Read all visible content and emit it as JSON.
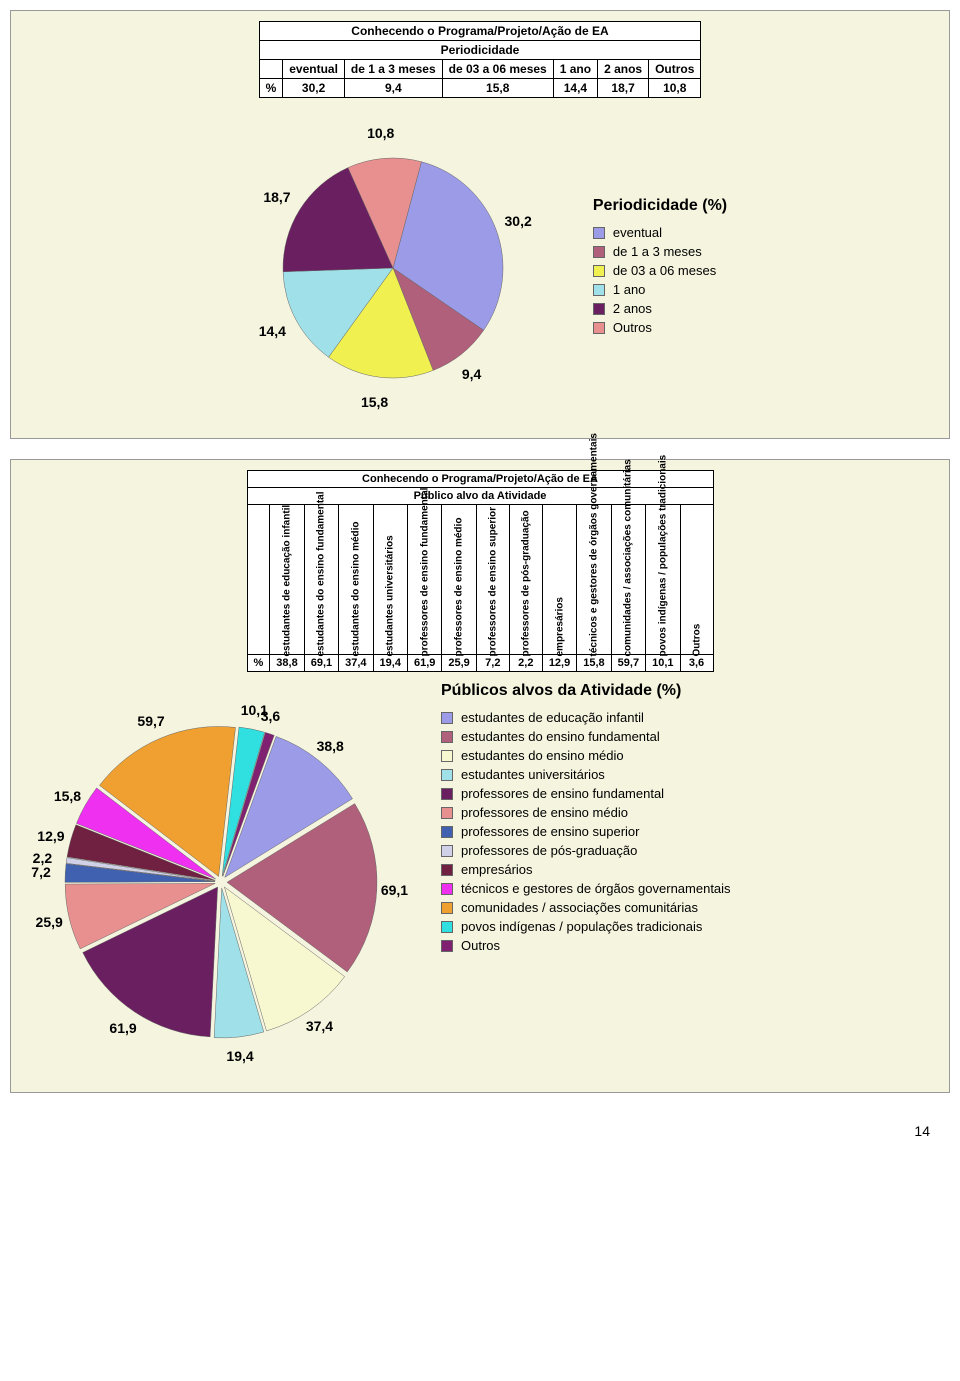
{
  "page_number": "14",
  "panel1": {
    "table": {
      "title": "Conhecendo o Programa/Projeto/Ação de EA",
      "subtitle": "Periodicidade",
      "headers": [
        "eventual",
        "de 1 a 3 meses",
        "de 03 a 06 meses",
        "1 ano",
        "2 anos",
        "Outros"
      ],
      "row_label": "%",
      "values": [
        "30,2",
        "9,4",
        "15,8",
        "14,4",
        "18,7",
        "10,8"
      ]
    },
    "chart": {
      "title": "Periodicidade (%)",
      "type": "pie",
      "background": "#f5f4df",
      "slices": [
        {
          "label": "eventual",
          "value": 30.2,
          "color": "#9b9be8",
          "text": "30,2"
        },
        {
          "label": "de 1 a 3 meses",
          "value": 9.4,
          "color": "#b0607a",
          "text": "9,4"
        },
        {
          "label": "de 03 a 06 meses",
          "value": 15.8,
          "color": "#f0f050",
          "text": "15,8"
        },
        {
          "label": "1 ano",
          "value": 14.4,
          "color": "#a0e0e8",
          "text": "14,4"
        },
        {
          "label": "2 anos",
          "value": 18.7,
          "color": "#6a2060",
          "text": "18,7"
        },
        {
          "label": "Outros",
          "value": 10.8,
          "color": "#e89090",
          "text": "10,8"
        }
      ]
    }
  },
  "panel2": {
    "table": {
      "title": "Conhecendo o Programa/Projeto/Ação de EA",
      "subtitle": "Público alvo da Atividade",
      "headers": [
        "estudantes de educação infantil",
        "estudantes do ensino fundamental",
        "estudantes do ensino médio",
        "estudantes universitários",
        "professores de ensino fundamental",
        "professores de ensino médio",
        "professores de ensino superior",
        "professores de pós-graduação",
        "empresários",
        "técnicos e gestores de órgãos governamentais",
        "comunidades / associações comunitárias",
        "povos indígenas / populações tradicionais",
        "Outros"
      ],
      "row_label": "%",
      "values": [
        "38,8",
        "69,1",
        "37,4",
        "19,4",
        "61,9",
        "25,9",
        "7,2",
        "2,2",
        "12,9",
        "15,8",
        "59,7",
        "10,1",
        "3,6"
      ]
    },
    "chart": {
      "title": "Públicos alvos da Atividade (%)",
      "type": "pie",
      "background": "#f5f4df",
      "slices": [
        {
          "label": "estudantes de educação infantil",
          "value": 38.8,
          "color": "#9b9be8",
          "text": "38,8"
        },
        {
          "label": "estudantes do ensino fundamental",
          "value": 69.1,
          "color": "#b0607a",
          "text": "69,1"
        },
        {
          "label": "estudantes do ensino médio",
          "value": 37.4,
          "color": "#f8f8d0",
          "text": "37,4"
        },
        {
          "label": "estudantes universitários",
          "value": 19.4,
          "color": "#a0e0e8",
          "text": "19,4"
        },
        {
          "label": "professores de ensino fundamental",
          "value": 61.9,
          "color": "#6a2060",
          "text": "61,9"
        },
        {
          "label": "professores de ensino médio",
          "value": 25.9,
          "color": "#e89090",
          "text": "25,9"
        },
        {
          "label": "professores de ensino superior",
          "value": 7.2,
          "color": "#4060b0",
          "text": "7,2"
        },
        {
          "label": "professores de pós-graduação",
          "value": 2.2,
          "color": "#d0d0e8",
          "text": "2,2"
        },
        {
          "label": "empresários",
          "value": 12.9,
          "color": "#702040",
          "text": "12,9"
        },
        {
          "label": "técnicos e gestores de órgãos governamentais",
          "value": 15.8,
          "color": "#f030f0",
          "text": "15,8"
        },
        {
          "label": "comunidades / associações comunitárias",
          "value": 59.7,
          "color": "#f0a030",
          "text": "59,7"
        },
        {
          "label": "povos indígenas / populações tradicionais",
          "value": 10.1,
          "color": "#30e0e0",
          "text": "10,1"
        },
        {
          "label": "Outros",
          "value": 3.6,
          "color": "#802070",
          "text": "3,6"
        }
      ]
    }
  }
}
